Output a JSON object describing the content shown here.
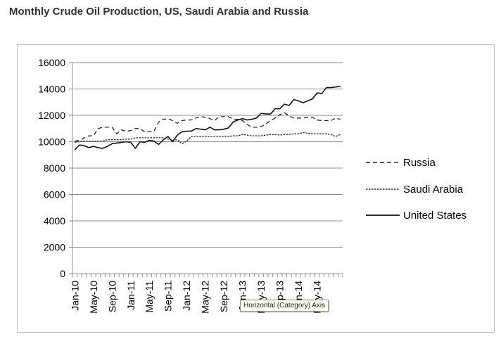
{
  "title": "Monthly Crude Oil Production, US, Saudi Arabia and Russia",
  "tooltip": "Horizontal (Category) Axis",
  "chart_data": {
    "type": "line",
    "ylim": [
      0,
      16000
    ],
    "y_ticks": [
      0,
      2000,
      4000,
      6000,
      8000,
      10000,
      12000,
      14000,
      16000
    ],
    "x_tick_labels": [
      "Jan-10",
      "May-10",
      "Sep-10",
      "Jan-11",
      "May-11",
      "Sep-11",
      "Jan-12",
      "May-12",
      "Sep-12",
      "Jan-13",
      "May-13",
      "Sep-13",
      "Jan-14",
      "May-14"
    ],
    "grid": "horizontal",
    "legend_position": "right",
    "series": [
      {
        "name": "Russia",
        "style": "dashed",
        "color": "#222222",
        "values": [
          10050,
          10100,
          10300,
          10450,
          10450,
          11000,
          11100,
          11100,
          11100,
          10600,
          10900,
          10800,
          10850,
          11000,
          11000,
          10750,
          10750,
          10800,
          11500,
          11700,
          11750,
          11600,
          11400,
          11600,
          11650,
          11650,
          11800,
          11900,
          11850,
          11750,
          11600,
          11900,
          11900,
          11900,
          11700,
          11700,
          11600,
          11300,
          11100,
          11100,
          11150,
          11350,
          11600,
          11800,
          12050,
          12200,
          11950,
          11800,
          11800,
          11800,
          11850,
          11850,
          11650,
          11600,
          11600,
          11600,
          11800,
          11700
        ]
      },
      {
        "name": "Saudi Arabia",
        "style": "dotted",
        "color": "#222222",
        "values": [
          9950,
          10000,
          10050,
          10050,
          10050,
          10050,
          10050,
          10150,
          10150,
          10150,
          10150,
          10200,
          10200,
          10300,
          10300,
          10300,
          10300,
          10300,
          10300,
          10300,
          10200,
          10100,
          10150,
          9850,
          10050,
          10400,
          10400,
          10400,
          10400,
          10400,
          10400,
          10400,
          10400,
          10400,
          10450,
          10450,
          10550,
          10500,
          10450,
          10450,
          10450,
          10500,
          10550,
          10550,
          10500,
          10550,
          10550,
          10600,
          10600,
          10700,
          10650,
          10600,
          10600,
          10600,
          10600,
          10550,
          10400,
          10550
        ]
      },
      {
        "name": "United States",
        "style": "solid",
        "color": "#111111",
        "values": [
          9400,
          9750,
          9700,
          9550,
          9650,
          9550,
          9500,
          9650,
          9850,
          9900,
          9950,
          10000,
          9950,
          9500,
          10000,
          9950,
          10100,
          10050,
          9800,
          10150,
          10400,
          10000,
          10500,
          10750,
          10800,
          10800,
          11000,
          10950,
          10900,
          11100,
          10900,
          10900,
          10950,
          11050,
          11500,
          11650,
          11750,
          11650,
          11700,
          11800,
          12150,
          12100,
          12100,
          12500,
          12500,
          12850,
          12750,
          13200,
          13100,
          12950,
          13100,
          13250,
          13700,
          13650,
          14100,
          14100,
          14150,
          14200
        ]
      }
    ]
  }
}
